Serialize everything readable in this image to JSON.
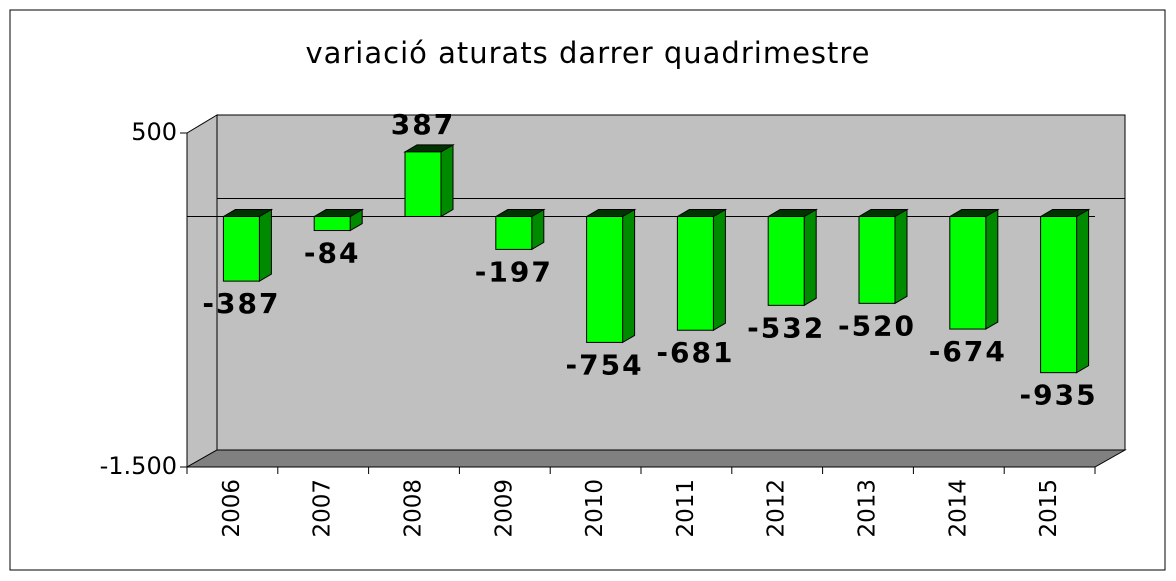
{
  "chart_data": {
    "type": "bar3d",
    "title": "variació aturats darrer quadrimestre",
    "categories": [
      "2006",
      "2007",
      "2008",
      "2009",
      "2010",
      "2011",
      "2012",
      "2013",
      "2014",
      "2015"
    ],
    "values": [
      -387,
      -84,
      387,
      -197,
      -754,
      -681,
      -532,
      -520,
      -674,
      -935
    ],
    "color": "#00ff00",
    "ylim": [
      -1500,
      500
    ],
    "yticks": [
      {
        "value": -1500,
        "label": "-1.500"
      },
      500
    ]
  }
}
